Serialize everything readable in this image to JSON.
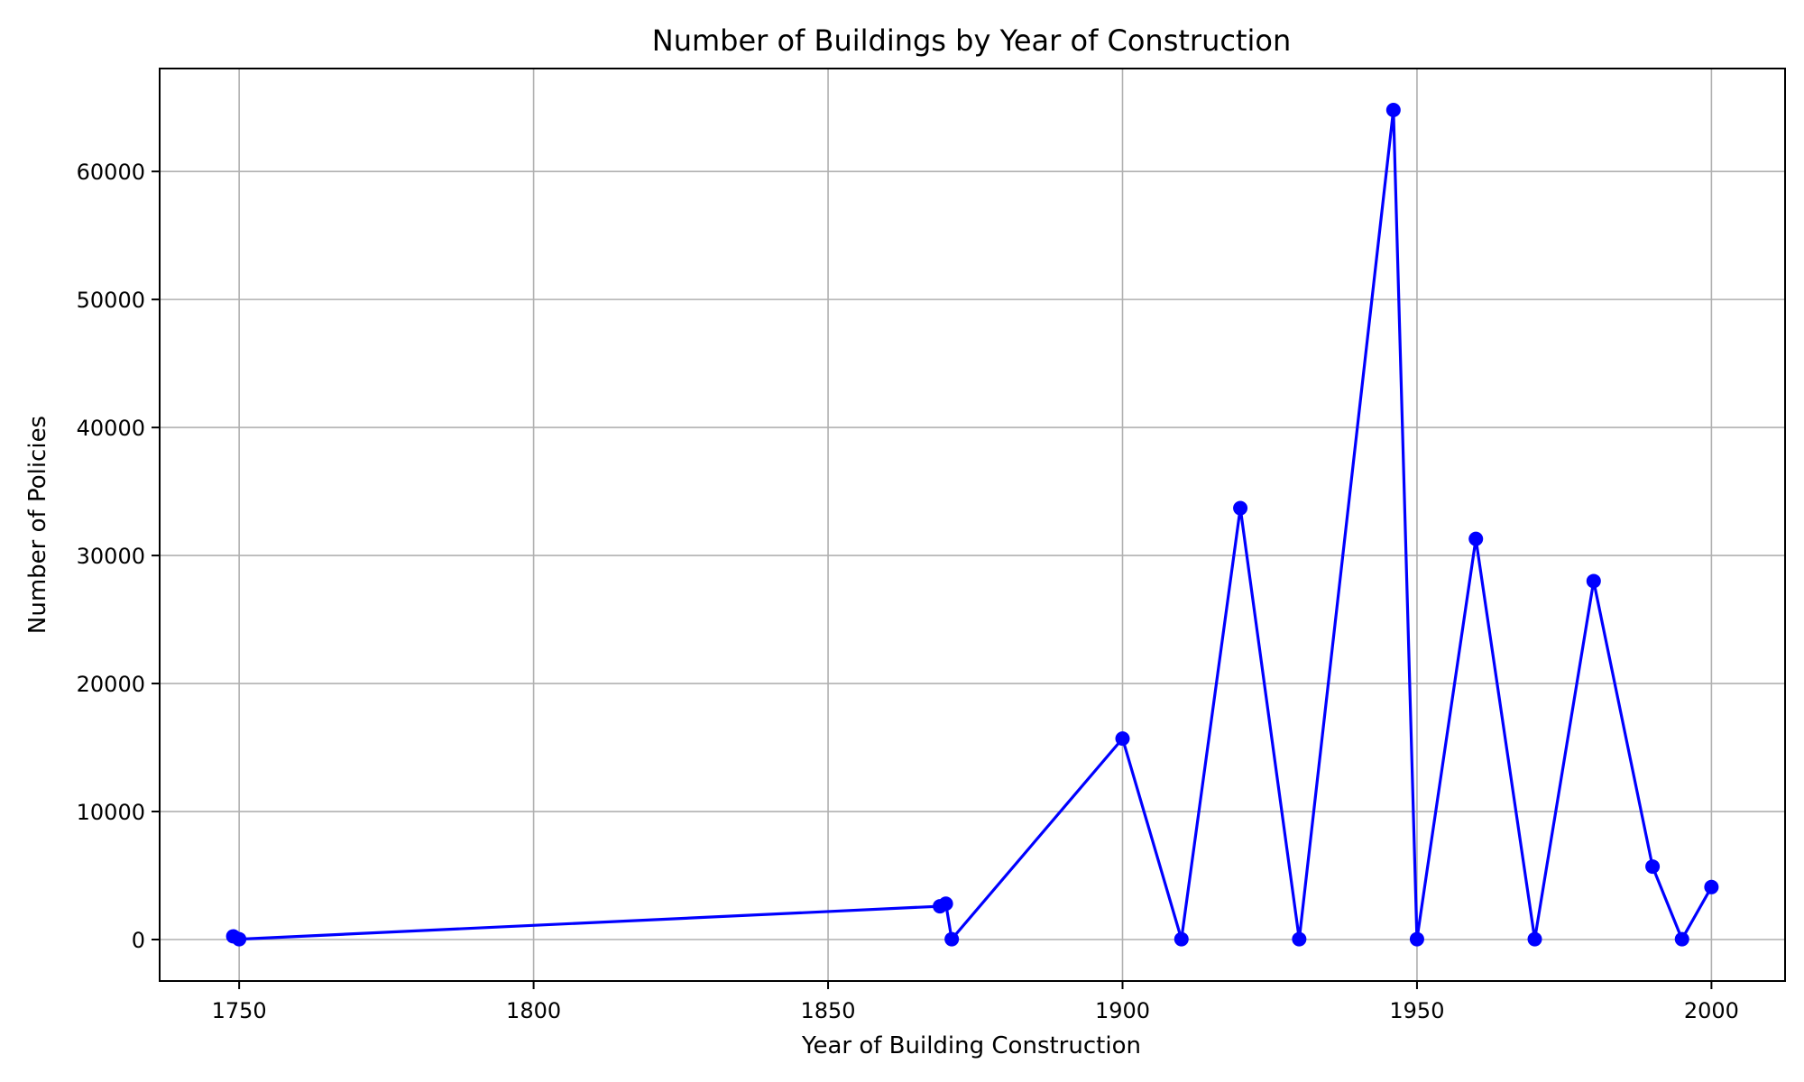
{
  "chart_data": {
    "type": "line",
    "title": "Number of Buildings by Year of Construction",
    "xlabel": "Year of Building Construction",
    "ylabel": "Number of Policies",
    "xlim": [
      1736.5,
      2012.5
    ],
    "ylim": [
      -3240,
      68040
    ],
    "xticks": [
      1750,
      1800,
      1850,
      1900,
      1950,
      2000
    ],
    "yticks": [
      0,
      10000,
      20000,
      30000,
      40000,
      50000,
      60000
    ],
    "grid": true,
    "legend": "none",
    "series": [
      {
        "color": "#0000ff",
        "marker": "circle",
        "x": [
          1749,
          1750,
          1869,
          1870,
          1871,
          1900,
          1910,
          1920,
          1930,
          1946,
          1950,
          1960,
          1970,
          1980,
          1990,
          1995,
          2000
        ],
        "y": [
          250,
          30,
          2600,
          2800,
          30,
          15700,
          30,
          33700,
          30,
          64800,
          30,
          31300,
          30,
          28000,
          5700,
          30,
          4100
        ]
      }
    ]
  }
}
